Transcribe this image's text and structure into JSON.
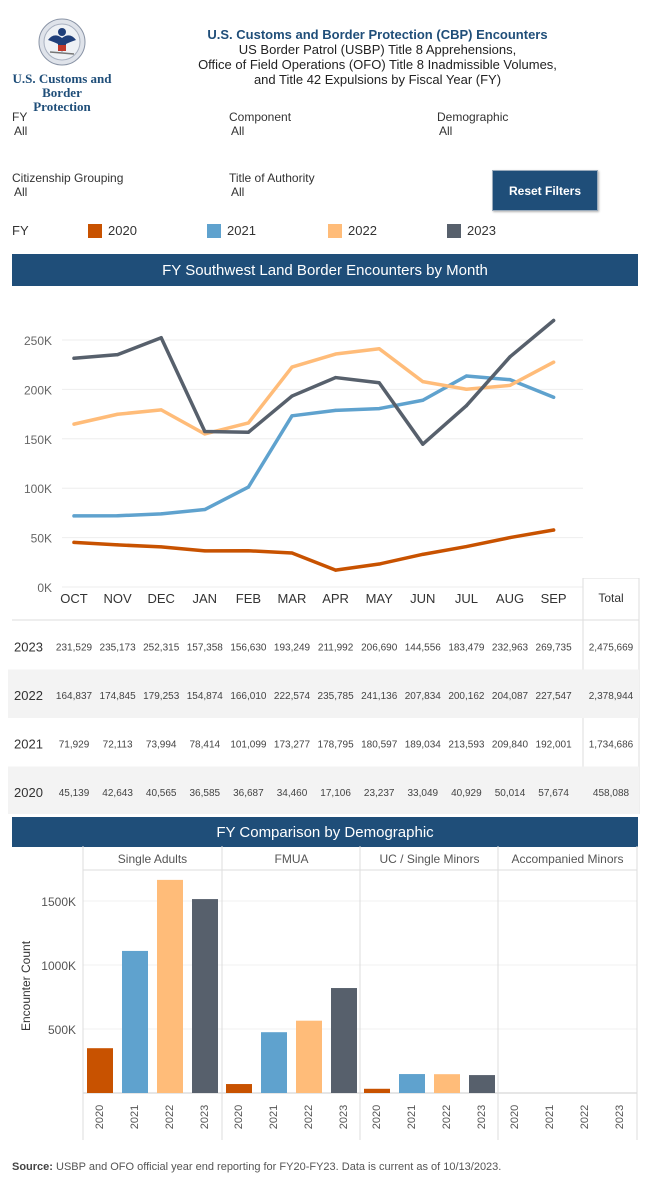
{
  "header": {
    "logo_line1": "U.S. Customs and",
    "logo_line2": "Border Protection",
    "logo_icon": "cbp-seal-icon",
    "title": "U.S. Customs and Border Protection (CBP) Encounters",
    "subtitle1": "US Border Patrol (USBP) Title 8 Apprehensions,",
    "subtitle2": "Office of Field Operations (OFO) Title 8 Inadmissible Volumes,",
    "subtitle3": "and Title 42 Expulsions by Fiscal Year (FY)"
  },
  "filters": {
    "fy": {
      "label": "FY",
      "value": "All"
    },
    "component": {
      "label": "Component",
      "value": "All"
    },
    "demographic": {
      "label": "Demographic",
      "value": "All"
    },
    "citizenship": {
      "label": "Citizenship Grouping",
      "value": "All"
    },
    "title_authority": {
      "label": "Title of Authority",
      "value": "All"
    },
    "reset_label": "Reset Filters"
  },
  "legend": {
    "title": "FY",
    "items": [
      {
        "label": "2020",
        "color": "#c85200"
      },
      {
        "label": "2021",
        "color": "#5fa2ce"
      },
      {
        "label": "2022",
        "color": "#ffbc79"
      },
      {
        "label": "2023",
        "color": "#57606c"
      }
    ]
  },
  "colors": {
    "brand": "#1f4e79",
    "fy2020": "#c85200",
    "fy2021": "#5fa2ce",
    "fy2022": "#ffbc79",
    "fy2023": "#57606c"
  },
  "chart_data": [
    {
      "type": "line",
      "title": "FY Southwest Land Border Encounters by Month",
      "xlabel": "",
      "ylabel": "",
      "categories": [
        "OCT",
        "NOV",
        "DEC",
        "JAN",
        "FEB",
        "MAR",
        "APR",
        "MAY",
        "JUN",
        "JUL",
        "AUG",
        "SEP"
      ],
      "y_ticks": [
        "0K",
        "50K",
        "100K",
        "150K",
        "200K",
        "250K"
      ],
      "ylim": [
        0,
        275000
      ],
      "grid": true,
      "legend": "top",
      "series": [
        {
          "name": "2023",
          "color": "#57606c",
          "values": [
            231529,
            235173,
            252315,
            157358,
            156630,
            193249,
            211992,
            206690,
            144556,
            183479,
            232963,
            269735
          ],
          "total": "2,475,669"
        },
        {
          "name": "2022",
          "color": "#ffbc79",
          "values": [
            164837,
            174845,
            179253,
            154874,
            166010,
            222574,
            235785,
            241136,
            207834,
            200162,
            204087,
            227547
          ],
          "total": "2,378,944"
        },
        {
          "name": "2021",
          "color": "#5fa2ce",
          "values": [
            71929,
            72113,
            73994,
            78414,
            101099,
            173277,
            178795,
            180597,
            189034,
            213593,
            209840,
            192001
          ],
          "total": "1,734,686"
        },
        {
          "name": "2020",
          "color": "#c85200",
          "values": [
            45139,
            42643,
            40565,
            36585,
            36687,
            34460,
            17106,
            23237,
            33049,
            40929,
            50014,
            57674
          ],
          "total": "458,088"
        }
      ],
      "table": {
        "total_header": "Total",
        "rows": [
          {
            "year": "2023",
            "cells": [
              "231,529",
              "235,173",
              "252,315",
              "157,358",
              "156,630",
              "193,249",
              "211,992",
              "206,690",
              "144,556",
              "183,479",
              "232,963",
              "269,735"
            ],
            "total": "2,475,669"
          },
          {
            "year": "2022",
            "cells": [
              "164,837",
              "174,845",
              "179,253",
              "154,874",
              "166,010",
              "222,574",
              "235,785",
              "241,136",
              "207,834",
              "200,162",
              "204,087",
              "227,547"
            ],
            "total": "2,378,944"
          },
          {
            "year": "2021",
            "cells": [
              "71,929",
              "72,113",
              "73,994",
              "78,414",
              "101,099",
              "173,277",
              "178,795",
              "180,597",
              "189,034",
              "213,593",
              "209,840",
              "192,001"
            ],
            "total": "1,734,686"
          },
          {
            "year": "2020",
            "cells": [
              "45,139",
              "42,643",
              "40,565",
              "36,585",
              "36,687",
              "34,460",
              "17,106",
              "23,237",
              "33,049",
              "40,929",
              "50,014",
              "57,674"
            ],
            "total": "458,088"
          }
        ]
      }
    },
    {
      "type": "bar",
      "title": "FY Comparison by Demographic",
      "xlabel": "",
      "ylabel": "Encounter Count",
      "y_ticks": [
        "500K",
        "1000K",
        "1500K"
      ],
      "ylim": [
        0,
        1720000
      ],
      "grid": true,
      "categories": [
        "2020",
        "2021",
        "2022",
        "2023"
      ],
      "panels": [
        {
          "name": "Single Adults",
          "values": [
            350000,
            1110000,
            1665000,
            1515000
          ]
        },
        {
          "name": "FMUA",
          "values": [
            70000,
            475000,
            565000,
            820000
          ]
        },
        {
          "name": "UC / Single Minors",
          "values": [
            33000,
            148000,
            147000,
            140000
          ]
        },
        {
          "name": "Accompanied Minors",
          "values": [
            0,
            0,
            0,
            0
          ]
        }
      ]
    }
  ],
  "sections": {
    "line_title": "FY Southwest Land Border Encounters by Month",
    "bar_title": "FY Comparison by Demographic"
  },
  "source": {
    "label": "Source:",
    "text": " USBP and OFO official year end reporting for FY20-FY23. Data is current as of 10/13/2023."
  }
}
